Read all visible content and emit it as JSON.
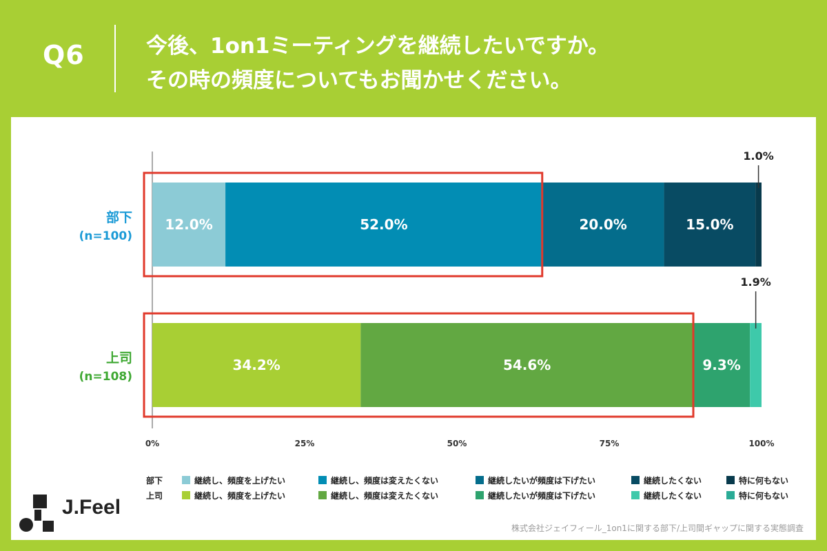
{
  "header": {
    "q_label": "Q6",
    "line1": "今後、1on1ミーティングを継続したいですか。",
    "line2": "その時の頻度についてもお聞かせください。"
  },
  "chart_data": {
    "type": "bar",
    "orientation": "horizontal",
    "stacked": true,
    "x_ticks": [
      "0%",
      "25%",
      "50%",
      "75%",
      "100%"
    ],
    "xlim": [
      0,
      100
    ],
    "bars": [
      {
        "name": "部下",
        "n_label": "(n=100)",
        "label_color": "#1a9ad6",
        "values": [
          12.0,
          52.0,
          20.0,
          15.0,
          1.0
        ],
        "labels": [
          "12.0%",
          "52.0%",
          "20.0%",
          "15.0%",
          "1.0%"
        ],
        "colors": [
          "#8ccbd6",
          "#028db4",
          "#046d8c",
          "#084b63",
          "#083a4c"
        ],
        "highlight_upto": 64.0
      },
      {
        "name": "上司",
        "n_label": "(n=108)",
        "label_color": "#3ea832",
        "values": [
          34.2,
          54.6,
          0.0,
          9.3,
          1.9
        ],
        "labels": [
          "34.2%",
          "54.6%",
          "",
          "9.3%",
          "1.9%"
        ],
        "colors": [
          "#a8cf34",
          "#62a842",
          "#2ea36e",
          "#2ea36e",
          "#3ec9aa"
        ],
        "highlight_upto": 88.8
      }
    ],
    "highlight_color": "#e0392b"
  },
  "legend": {
    "rows": [
      {
        "group": "部下",
        "items": [
          {
            "label": "継続し、頻度を上げたい",
            "color": "#8ccbd6"
          },
          {
            "label": "継続し、頻度は変えたくない",
            "color": "#028db4"
          },
          {
            "label": "継続したいが頻度は下げたい",
            "color": "#046d8c"
          },
          {
            "label": "継続したくない",
            "color": "#084b63"
          },
          {
            "label": "特に何もない",
            "color": "#083a4c"
          }
        ]
      },
      {
        "group": "上司",
        "items": [
          {
            "label": "継続し、頻度を上げたい",
            "color": "#a8cf34"
          },
          {
            "label": "継続し、頻度は変えたくない",
            "color": "#62a842"
          },
          {
            "label": "継続したいが頻度は下げたい",
            "color": "#2ea36e"
          },
          {
            "label": "継続したくない",
            "color": "#3ec9aa"
          },
          {
            "label": "特に何もない",
            "color": "#2aab96"
          }
        ]
      }
    ]
  },
  "logo": {
    "text": "J.Feel"
  },
  "source": "株式会社ジェイフィール_1on1に関する部下/上司間ギャップに関する実態調査"
}
